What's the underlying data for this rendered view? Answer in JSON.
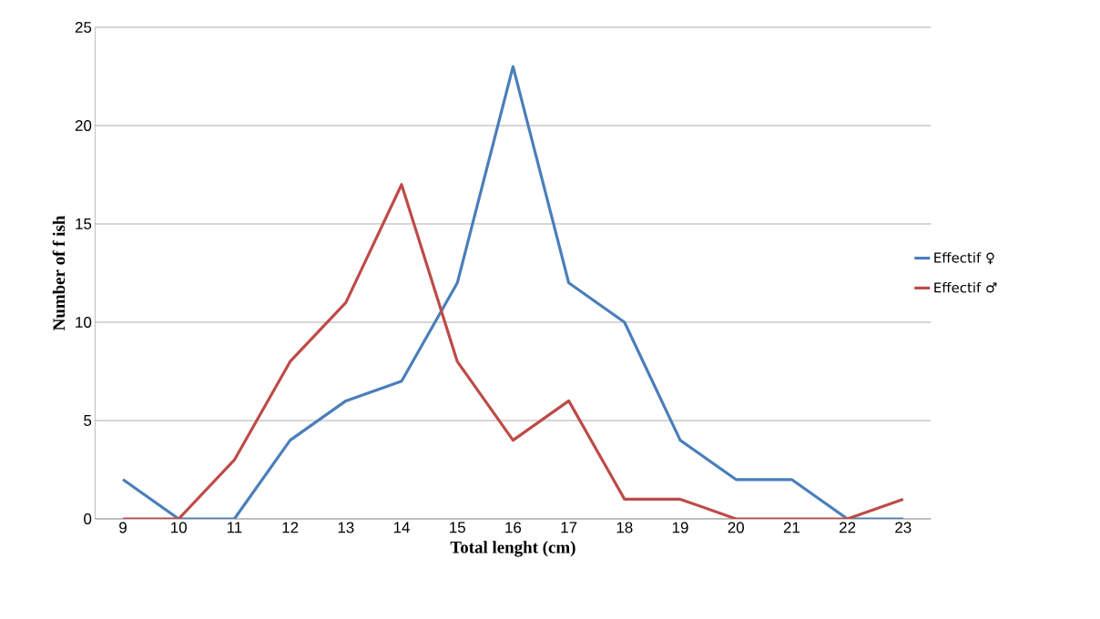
{
  "chart_data": {
    "type": "line",
    "xlabel": "Total lenght (cm)",
    "ylabel": "Number of f ish",
    "categories": [
      "9",
      "10",
      "11",
      "12",
      "13",
      "14",
      "15",
      "16",
      "17",
      "18",
      "19",
      "20",
      "21",
      "22",
      "23"
    ],
    "series": [
      {
        "name": "Effectif ♀",
        "color": "#4a7ebb",
        "values": [
          2,
          0,
          0,
          4,
          6,
          7,
          12,
          23,
          12,
          10,
          4,
          2,
          2,
          0,
          0
        ]
      },
      {
        "name": "Effectif ♂",
        "color": "#be4b48",
        "values": [
          0,
          0,
          3,
          8,
          11,
          17,
          8,
          4,
          6,
          1,
          1,
          0,
          0,
          0,
          1
        ]
      }
    ],
    "ylim": [
      0,
      25
    ],
    "yticks": [
      0,
      5,
      10,
      15,
      20,
      25
    ],
    "grid": "y",
    "legend": "right",
    "marker": "none",
    "line_style": "solid"
  }
}
